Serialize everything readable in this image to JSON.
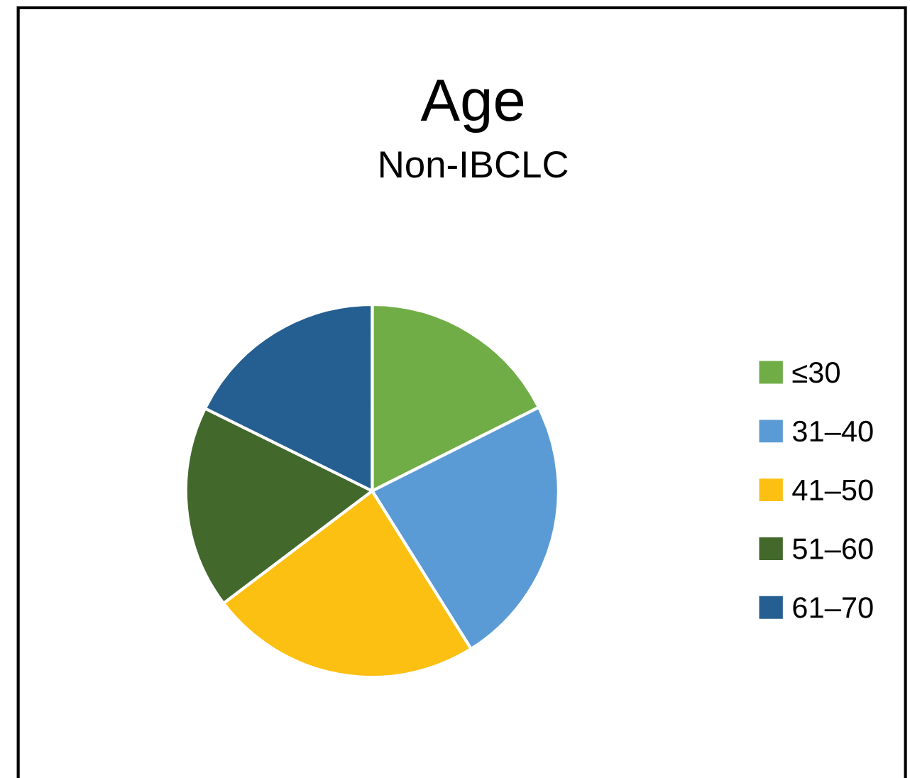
{
  "chart_data": {
    "type": "pie",
    "title": "Age",
    "subtitle": "Non-IBCLC",
    "categories": [
      "≤30",
      "31–40",
      "41–50",
      "51–60",
      "61–70"
    ],
    "values": [
      17.6,
      23.5,
      23.6,
      17.6,
      17.7
    ],
    "colors": [
      "#70ad47",
      "#5b9bd5",
      "#fcc012",
      "#43682b",
      "#255e91"
    ],
    "legend": "right"
  }
}
